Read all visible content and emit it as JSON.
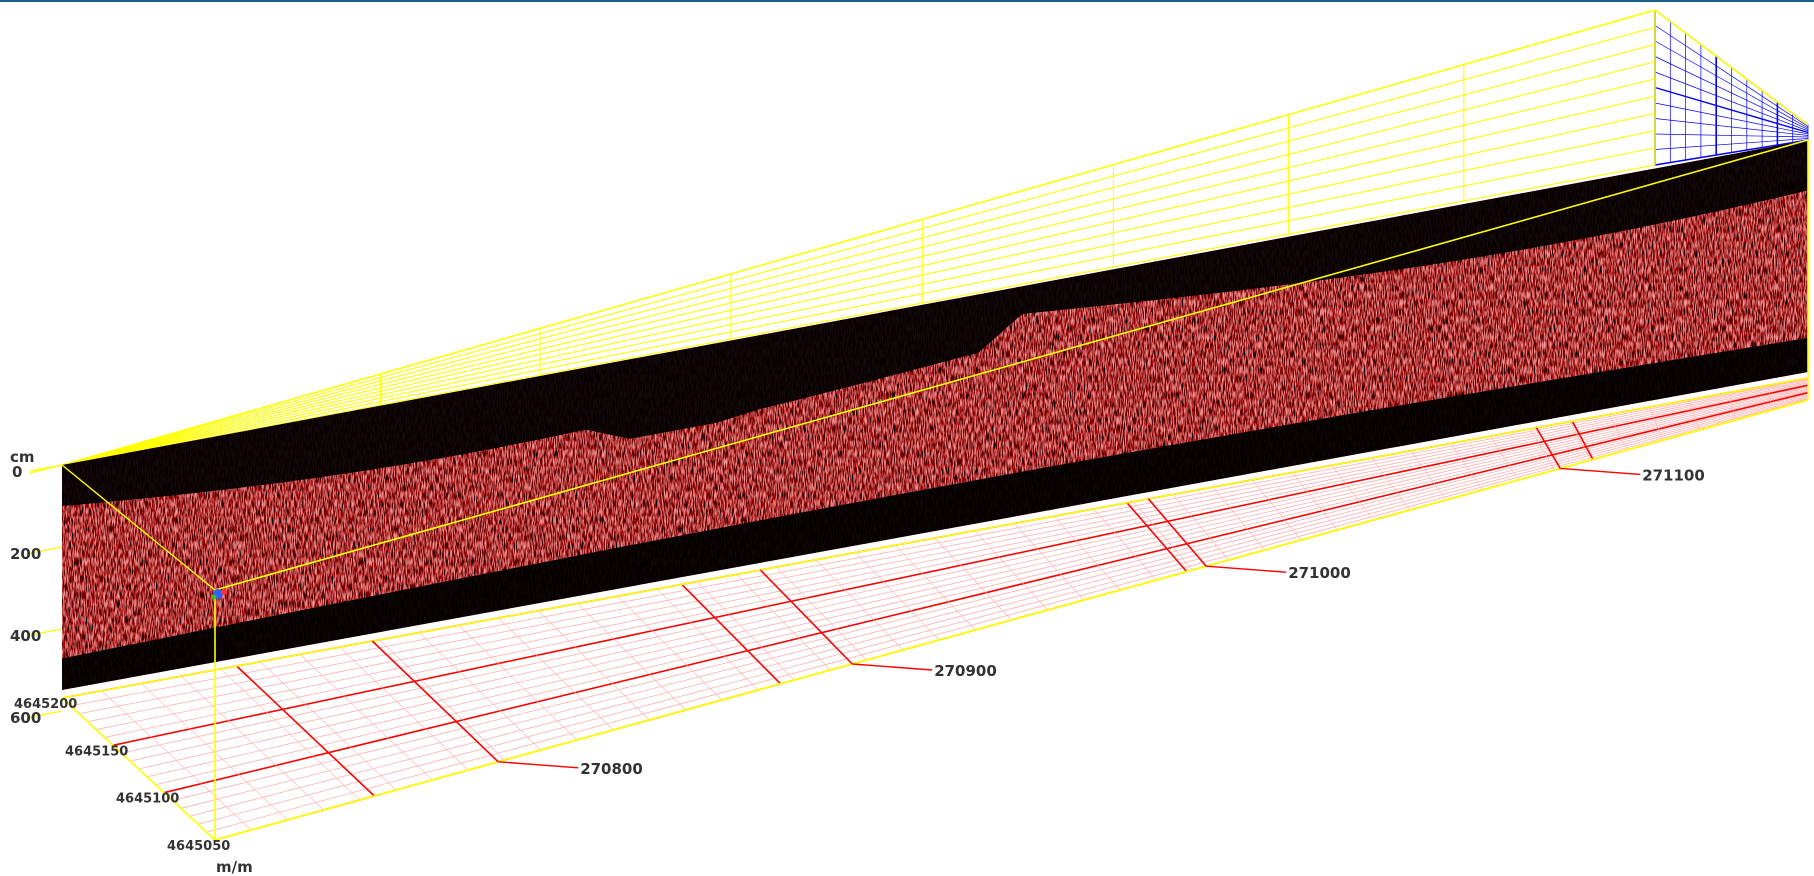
{
  "chart_data": {
    "type": "heatmap",
    "title": "",
    "colors": {
      "frame": "#ffff00",
      "floor_grid": "#ff0000",
      "floor_grid_light": "#ffb0b0",
      "back_wall_grid": "#0000ff",
      "top_rule": "#1a5e8a",
      "radargram_low": "#000000",
      "radargram_mid": "#b02000",
      "radargram_high": "#ffffff",
      "label": "#333333"
    },
    "depth_axis": {
      "unit_label": "cm",
      "ticks": [
        "0",
        "200",
        "400",
        "600"
      ],
      "range": [
        0,
        700
      ]
    },
    "easting_axis": {
      "ticks": [
        "270800",
        "270900",
        "271000",
        "271100"
      ],
      "range": [
        270720,
        271170
      ]
    },
    "northing_axis": {
      "unit_label": "m/m",
      "ticks": [
        "4645200",
        "4645150",
        "4645100",
        "4645050"
      ],
      "range": [
        4645050,
        4645200
      ]
    },
    "grid": true,
    "legend": "none"
  }
}
